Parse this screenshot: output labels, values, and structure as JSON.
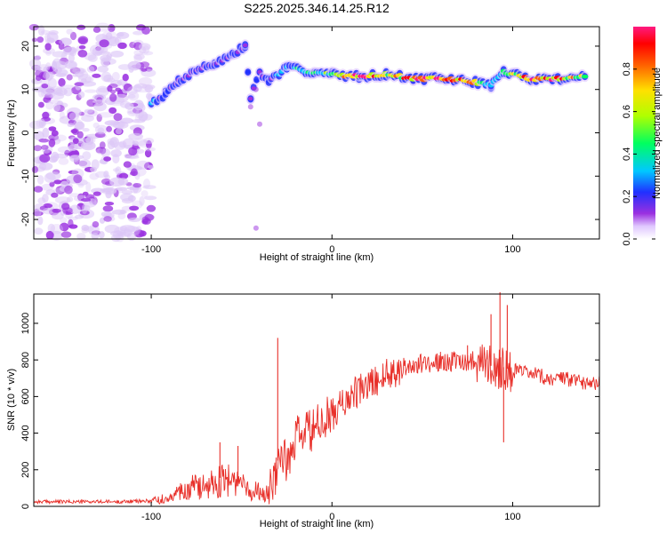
{
  "title": "S225.2025.346.14.25.R12",
  "chart_data": [
    {
      "type": "heatmap",
      "name": "spectrogram",
      "xlabel": "Height of straight line (km)",
      "ylabel": "Frequency (Hz)",
      "xlim": [
        -165,
        148
      ],
      "ylim": [
        -24.5,
        24.5
      ],
      "x_ticks": [
        -100,
        0,
        100
      ],
      "x_tick_labels": [
        "-100",
        "0",
        "100"
      ],
      "y_ticks": [
        -20,
        -10,
        0,
        10,
        20
      ],
      "y_tick_labels": [
        "-20",
        "-10",
        "0",
        "10",
        "20"
      ],
      "noise_region_x": [
        -165,
        -100
      ],
      "ridge": [
        {
          "x": -100,
          "y": 7,
          "a": 0.3
        },
        {
          "x": -92,
          "y": 9,
          "a": 0.25
        },
        {
          "x": -85,
          "y": 12,
          "a": 0.2
        },
        {
          "x": -75,
          "y": 14.5,
          "a": 0.18
        },
        {
          "x": -65,
          "y": 16,
          "a": 0.2
        },
        {
          "x": -55,
          "y": 18,
          "a": 0.22
        },
        {
          "x": -48,
          "y": 20,
          "a": 0.25
        },
        {
          "x": -45,
          "y": 8,
          "a": 0.25
        },
        {
          "x": -40,
          "y": 14,
          "a": 0.2
        },
        {
          "x": -35,
          "y": 12,
          "a": 0.25
        },
        {
          "x": -25,
          "y": 15,
          "a": 0.35
        },
        {
          "x": -10,
          "y": 14,
          "a": 0.5
        },
        {
          "x": 0,
          "y": 13.5,
          "a": 0.6
        },
        {
          "x": 15,
          "y": 13,
          "a": 0.95
        },
        {
          "x": 30,
          "y": 13.5,
          "a": 0.7
        },
        {
          "x": 45,
          "y": 12.5,
          "a": 0.9
        },
        {
          "x": 60,
          "y": 12.5,
          "a": 0.95
        },
        {
          "x": 75,
          "y": 12,
          "a": 0.85
        },
        {
          "x": 88,
          "y": 11,
          "a": 0.4
        },
        {
          "x": 95,
          "y": 14,
          "a": 0.5
        },
        {
          "x": 110,
          "y": 12.5,
          "a": 0.9
        },
        {
          "x": 125,
          "y": 12.5,
          "a": 0.85
        },
        {
          "x": 140,
          "y": 13,
          "a": 0.6
        }
      ]
    },
    {
      "type": "colorbar",
      "name": "amplitude-colorbar",
      "label": "Normalized spectral amplitude",
      "range": [
        0,
        1
      ],
      "ticks": [
        0,
        0.2,
        0.4,
        0.6,
        0.8
      ],
      "tick_labels": [
        "0.0",
        "0.2",
        "0.4",
        "0.6",
        "0.8"
      ]
    },
    {
      "type": "line",
      "name": "snr",
      "xlabel": "Height of straight line (km)",
      "ylabel": "SNR (10 * v/v)",
      "xlim": [
        -165,
        148
      ],
      "ylim": [
        0,
        1160
      ],
      "x_ticks": [
        -100,
        0,
        100
      ],
      "x_tick_labels": [
        "-100",
        "0",
        "100"
      ],
      "y_ticks": [
        0,
        200,
        400,
        600,
        800,
        1000
      ],
      "y_tick_labels": [
        "0",
        "200",
        "400",
        "600",
        "800",
        "1000"
      ],
      "color": "#e8302a",
      "x": [
        -165,
        -140,
        -120,
        -100,
        -92,
        -85,
        -80,
        -75,
        -70,
        -65,
        -60,
        -55,
        -50,
        -45,
        -40,
        -35,
        -32,
        -30,
        -27,
        -25,
        -22,
        -20,
        -15,
        -10,
        -5,
        0,
        10,
        20,
        30,
        40,
        50,
        60,
        70,
        80,
        85,
        90,
        95,
        100,
        110,
        120,
        130,
        140,
        148
      ],
      "y": [
        25,
        25,
        25,
        30,
        50,
        80,
        110,
        120,
        130,
        150,
        160,
        150,
        130,
        100,
        90,
        80,
        140,
        250,
        300,
        200,
        300,
        380,
        400,
        420,
        460,
        500,
        600,
        660,
        720,
        760,
        780,
        790,
        790,
        800,
        780,
        760,
        760,
        740,
        720,
        700,
        690,
        680,
        680
      ],
      "spikes": [
        {
          "x": -62,
          "y": 350
        },
        {
          "x": -52,
          "y": 330
        },
        {
          "x": -30,
          "y": 920
        },
        {
          "x": 75,
          "y": 880
        },
        {
          "x": 88,
          "y": 1050
        },
        {
          "x": 93,
          "y": 1170
        },
        {
          "x": 97,
          "y": 1100
        },
        {
          "x": 95,
          "y": 350
        }
      ]
    }
  ]
}
